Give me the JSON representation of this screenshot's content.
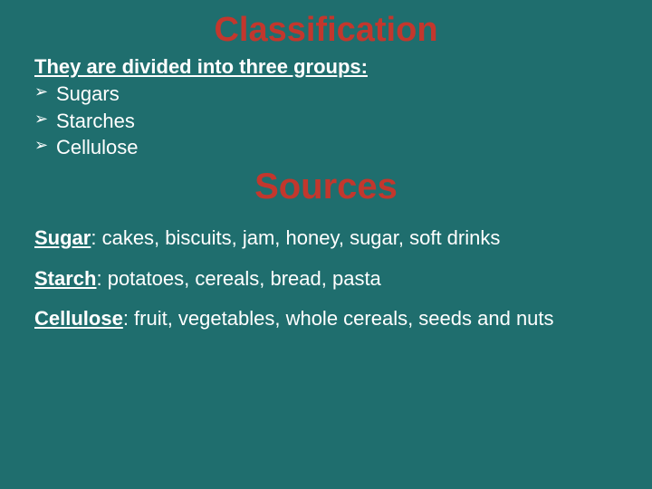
{
  "colors": {
    "background": "#1f6e6e",
    "heading": "#c3372d",
    "body": "#ffffff"
  },
  "typography": {
    "font_family": "Comic Sans MS",
    "h1_fontsize": 38,
    "h2_fontsize": 40,
    "subhead_fontsize": 22,
    "bullet_fontsize": 22,
    "body_fontsize": 22
  },
  "heading1": "Classification",
  "subhead": "They are divided into three groups:",
  "bullets": [
    {
      "label": "Sugars"
    },
    {
      "label": "Starches"
    },
    {
      "label": "Cellulose"
    }
  ],
  "heading2": "Sources",
  "sources": [
    {
      "label": "Sugar",
      "text": ": cakes, biscuits, jam, honey, sugar, soft drinks"
    },
    {
      "label": "Starch",
      "text": ": potatoes, cereals, bread, pasta"
    },
    {
      "label": "Cellulose",
      "text": ": fruit, vegetables, whole cereals, seeds and nuts"
    }
  ]
}
